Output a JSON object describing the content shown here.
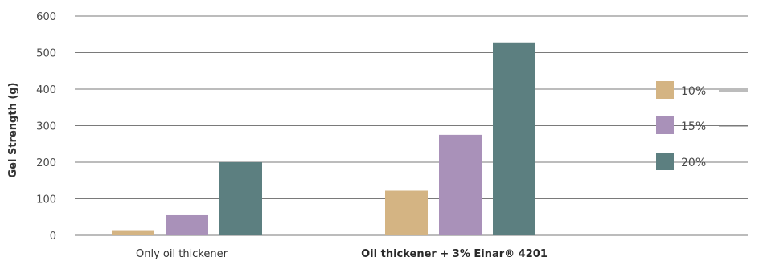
{
  "chart_data": {
    "type": "bar",
    "title": "",
    "xlabel": "",
    "ylabel": "Gel Strength (g)",
    "ylim": [
      0,
      600
    ],
    "yticks": [
      0,
      100,
      200,
      300,
      400,
      500,
      600
    ],
    "grid": true,
    "legend_position": "right",
    "categories": [
      {
        "label": "Only oil thickener",
        "bold": false
      },
      {
        "label": "Oil thickener + 3% Einar® 4201",
        "bold": true
      }
    ],
    "series": [
      {
        "name": "10%",
        "color": "#d4b483",
        "values": [
          12,
          122
        ]
      },
      {
        "name": "15%",
        "color": "#a991b9",
        "values": [
          55,
          275
        ]
      },
      {
        "name": "20%",
        "color": "#5c7f80",
        "values": [
          200,
          528
        ]
      }
    ]
  }
}
